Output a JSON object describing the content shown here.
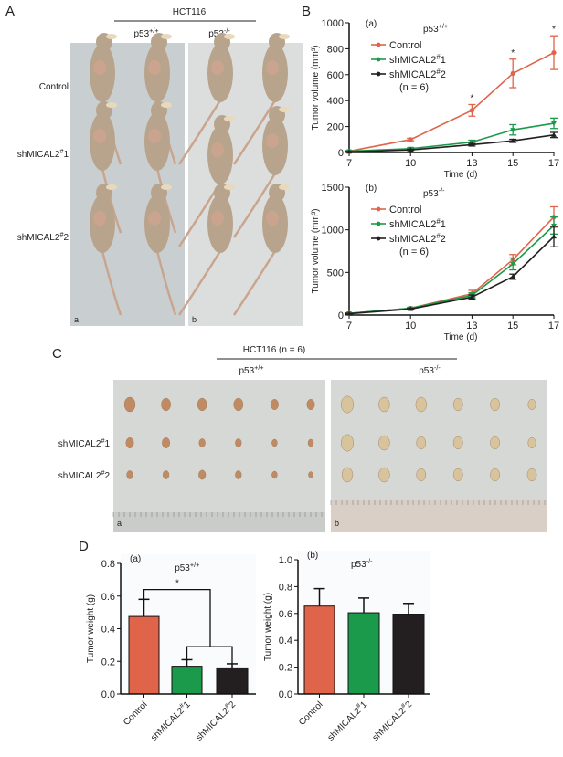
{
  "colors": {
    "control": "#e0644a",
    "sh1": "#1b9a4b",
    "sh2": "#231f20",
    "photo_bg": "#c9cfd0",
    "mouse": "#b8a48c",
    "tumor_a": "#c08a62",
    "tumor_b": "#d8c49c"
  },
  "panel_labels": {
    "A": "A",
    "B": "B",
    "C": "C",
    "D": "D"
  },
  "groups": {
    "control": "Control",
    "sh1": {
      "base": "shMICAL2",
      "sup": "#",
      "tail": "1"
    },
    "sh2": {
      "base": "shMICAL2",
      "sup": "#",
      "tail": "2"
    }
  },
  "genotypes": {
    "wt": {
      "base": "p53",
      "sup": "+/+"
    },
    "ko": {
      "base": "p53",
      "sup": "-/-"
    }
  },
  "panelA": {
    "title": "HCT116",
    "photo_labels": [
      "a",
      "b"
    ]
  },
  "panelC": {
    "title": "HCT116 (n = 6)",
    "photo_labels": [
      "a",
      "b"
    ]
  },
  "chart_data": [
    {
      "id": "B-a",
      "type": "line",
      "subtitle": "(a)",
      "xlabel": "Time (d)",
      "ylabel": "Tumor volume (mm³)",
      "x": [
        7,
        10,
        13,
        15,
        17
      ],
      "xticks": [
        "7",
        "10",
        "13",
        "15",
        "17"
      ],
      "ylim": [
        0,
        1000
      ],
      "yticks": [
        "0",
        "200",
        "400",
        "600",
        "800",
        "1000"
      ],
      "legend_n": "(n = 6)",
      "legend_placement": "top-left",
      "significance": {
        "x": [
          13,
          15,
          17
        ],
        "label": "*"
      },
      "series": [
        {
          "key": "control",
          "values": [
            10,
            100,
            325,
            610,
            770
          ],
          "errors": [
            5,
            10,
            45,
            110,
            130
          ]
        },
        {
          "key": "sh1",
          "values": [
            10,
            30,
            80,
            175,
            225
          ],
          "errors": [
            3,
            8,
            15,
            40,
            40
          ]
        },
        {
          "key": "sh2",
          "values": [
            5,
            20,
            60,
            90,
            135
          ],
          "errors": [
            3,
            5,
            10,
            12,
            20
          ]
        }
      ]
    },
    {
      "id": "B-b",
      "type": "line",
      "subtitle": "(b)",
      "xlabel": "Time (d)",
      "ylabel": "Tumor volume (mm³)",
      "x": [
        7,
        10,
        13,
        15,
        17
      ],
      "xticks": [
        "7",
        "10",
        "13",
        "15",
        "17"
      ],
      "ylim": [
        0,
        1500
      ],
      "yticks": [
        "0",
        "500",
        "1000",
        "1500"
      ],
      "legend_n": "(n = 6)",
      "legend_placement": "top-left",
      "series": [
        {
          "key": "control",
          "values": [
            20,
            80,
            250,
            650,
            1150
          ],
          "errors": [
            5,
            10,
            40,
            60,
            120
          ]
        },
        {
          "key": "sh1",
          "values": [
            20,
            80,
            230,
            600,
            1050
          ],
          "errors": [
            5,
            10,
            30,
            70,
            100
          ]
        },
        {
          "key": "sh2",
          "values": [
            15,
            70,
            210,
            450,
            920
          ],
          "errors": [
            5,
            10,
            25,
            30,
            120
          ]
        }
      ]
    },
    {
      "id": "D-a",
      "type": "bar",
      "subtitle": "(a)",
      "ylabel": "Tumor weight (g)",
      "ylim": [
        0,
        0.8
      ],
      "yticks": [
        "0.0",
        "0.2",
        "0.4",
        "0.6",
        "0.8"
      ],
      "keys": [
        "control",
        "sh1",
        "sh2"
      ],
      "values": [
        0.475,
        0.17,
        0.16
      ],
      "errors": [
        0.105,
        0.04,
        0.025
      ],
      "significance": {
        "label": "*",
        "compare": [
          "control",
          [
            "sh1",
            "sh2"
          ]
        ]
      }
    },
    {
      "id": "D-b",
      "type": "bar",
      "subtitle": "(b)",
      "ylabel": "Tumor weight (g)",
      "ylim": [
        0,
        1.0
      ],
      "yticks": [
        "0.0",
        "0.2",
        "0.4",
        "0.6",
        "0.8",
        "1.0"
      ],
      "keys": [
        "control",
        "sh1",
        "sh2"
      ],
      "values": [
        0.655,
        0.605,
        0.595
      ],
      "errors": [
        0.13,
        0.11,
        0.08
      ]
    }
  ]
}
